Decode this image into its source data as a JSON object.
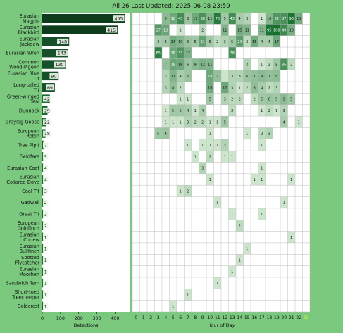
{
  "header": {
    "title": "All 26 Last Updated: 2025-06-08 23:59"
  },
  "chart_data": [
    {
      "type": "bar",
      "orientation": "horizontal",
      "categories": [
        "Eurasian Magpie",
        "Eurasian Blackbird",
        "Eurasian Jackdaw",
        "Eurasian Wren",
        "Common Wood-Pigeon",
        "Eurasian Blue Tit",
        "Long-tailed Tit",
        "Green-winged Teal",
        "Dunnock",
        "Graylag Goose",
        "European Robin",
        "Tree Pipit",
        "Fieldfare",
        "Eurasian Coot",
        "Eurasian Collared-Dove",
        "Coal Tit",
        "Gadwall",
        "Great Tit",
        "European Goldfinch",
        "Eurasian Curlew",
        "Eurasian Bullfinch",
        "Spotted Flycatcher",
        "Eurasian Moorhen",
        "Sandwich Tern",
        "Short-toed Treecreeper",
        "Goldcrest"
      ],
      "values": [
        455,
        415,
        148,
        143,
        130,
        90,
        69,
        42,
        29,
        22,
        18,
        7,
        5,
        4,
        4,
        3,
        2,
        2,
        2,
        1,
        1,
        1,
        1,
        1,
        1,
        1
      ],
      "xlabel": "Detections",
      "xlim": [
        0,
        480
      ],
      "xticks": [
        0,
        100,
        200,
        300,
        400
      ]
    },
    {
      "type": "heatmap",
      "xlabel": "Hour of Day",
      "hours": [
        0,
        1,
        2,
        3,
        4,
        5,
        6,
        7,
        8,
        9,
        10,
        11,
        12,
        13,
        14,
        15,
        16,
        17,
        18,
        19,
        20,
        21,
        22,
        23
      ],
      "current_hour": 23,
      "rows": [
        {
          "species": "Eurasian Magpie",
          "cells": [
            [
              4,
              9
            ],
            [
              5,
              18
            ],
            [
              6,
              45
            ],
            [
              7,
              6
            ],
            [
              8,
              17
            ],
            [
              9,
              38
            ],
            [
              10,
              11
            ],
            [
              11,
              78
            ],
            [
              12,
              5
            ],
            [
              13,
              43
            ],
            [
              14,
              4
            ],
            [
              15,
              3
            ],
            [
              17,
              1
            ],
            [
              18,
              10
            ],
            [
              19,
              32
            ],
            [
              20,
              37
            ],
            [
              21,
              96
            ],
            [
              22,
              15
            ]
          ]
        },
        {
          "species": "Eurasian Blackbird",
          "cells": [
            [
              3,
              27
            ],
            [
              4,
              19
            ],
            [
              6,
              1
            ],
            [
              9,
              2
            ],
            [
              12,
              11
            ],
            [
              14,
              15
            ],
            [
              15,
              11
            ],
            [
              17,
              11
            ],
            [
              18,
              95
            ],
            [
              19,
              108
            ],
            [
              20,
              49
            ],
            [
              21,
              13
            ]
          ]
        },
        {
          "species": "Eurasian Jackdaw",
          "cells": [
            [
              3,
              4
            ],
            [
              4,
              5
            ],
            [
              5,
              14
            ],
            [
              6,
              10
            ],
            [
              7,
              6
            ],
            [
              8,
              5
            ],
            [
              9,
              21
            ],
            [
              10,
              5
            ],
            [
              11,
              2
            ],
            [
              12,
              3
            ],
            [
              13,
              5
            ],
            [
              14,
              24
            ],
            [
              15,
              2
            ],
            [
              16,
              15
            ],
            [
              17,
              4
            ],
            [
              18,
              4
            ],
            [
              19,
              17
            ]
          ]
        },
        {
          "species": "Eurasian Wren",
          "cells": [
            [
              3,
              65
            ],
            [
              5,
              18
            ],
            [
              6,
              33
            ],
            [
              7,
              12
            ],
            [
              13,
              38
            ]
          ]
        },
        {
          "species": "Common Wood-Pigeon",
          "cells": [
            [
              4,
              7
            ],
            [
              5,
              19
            ],
            [
              6,
              16
            ],
            [
              7,
              6
            ],
            [
              8,
              9
            ],
            [
              9,
              12
            ],
            [
              10,
              11
            ],
            [
              15,
              3
            ],
            [
              17,
              1
            ],
            [
              18,
              2
            ],
            [
              19,
              5
            ],
            [
              20,
              36
            ],
            [
              21,
              2
            ]
          ]
        },
        {
          "species": "Eurasian Blue Tit",
          "cells": [
            [
              4,
              3
            ],
            [
              5,
              11
            ],
            [
              6,
              4
            ],
            [
              7,
              6
            ],
            [
              10,
              18
            ],
            [
              11,
              7
            ],
            [
              12,
              1
            ],
            [
              13,
              3
            ],
            [
              14,
              3
            ],
            [
              15,
              6
            ],
            [
              16,
              7
            ],
            [
              17,
              9
            ],
            [
              18,
              7
            ],
            [
              19,
              8
            ]
          ]
        },
        {
          "species": "Long-tailed Tit",
          "cells": [
            [
              4,
              3
            ],
            [
              5,
              8
            ],
            [
              6,
              2
            ],
            [
              10,
              16
            ],
            [
              12,
              17
            ],
            [
              13,
              3
            ],
            [
              14,
              1
            ],
            [
              15,
              2
            ],
            [
              16,
              8
            ],
            [
              17,
              4
            ],
            [
              18,
              2
            ],
            [
              19,
              3
            ]
          ]
        },
        {
          "species": "Green-winged Teal",
          "cells": [
            [
              6,
              1
            ],
            [
              7,
              1
            ],
            [
              10,
              5
            ],
            [
              12,
              3
            ],
            [
              13,
              2
            ],
            [
              14,
              2
            ],
            [
              16,
              2
            ],
            [
              17,
              5
            ],
            [
              18,
              6
            ],
            [
              19,
              5
            ],
            [
              20,
              9
            ],
            [
              21,
              5
            ]
          ]
        },
        {
          "species": "Dunnock",
          "cells": [
            [
              4,
              1
            ],
            [
              5,
              5
            ],
            [
              6,
              5
            ],
            [
              7,
              4
            ],
            [
              8,
              1
            ],
            [
              9,
              4
            ],
            [
              13,
              2
            ],
            [
              17,
              1
            ],
            [
              18,
              2
            ],
            [
              19,
              1
            ],
            [
              20,
              3
            ]
          ]
        },
        {
          "species": "Graylag Goose",
          "cells": [
            [
              4,
              1
            ],
            [
              5,
              1
            ],
            [
              6,
              1
            ],
            [
              7,
              3
            ],
            [
              8,
              2
            ],
            [
              9,
              2
            ],
            [
              10,
              1
            ],
            [
              11,
              1
            ],
            [
              12,
              5
            ],
            [
              20,
              4
            ],
            [
              22,
              1
            ]
          ]
        },
        {
          "species": "European Robin",
          "cells": [
            [
              3,
              5
            ],
            [
              4,
              6
            ],
            [
              10,
              1
            ],
            [
              15,
              1
            ],
            [
              17,
              2
            ],
            [
              18,
              3
            ]
          ]
        },
        {
          "species": "Tree Pipit",
          "cells": [
            [
              7,
              1
            ],
            [
              9,
              1
            ],
            [
              10,
              1
            ],
            [
              11,
              1
            ],
            [
              12,
              3
            ],
            [
              17,
              1
            ]
          ]
        },
        {
          "species": "Fieldfare",
          "cells": [
            [
              8,
              1
            ],
            [
              10,
              2
            ],
            [
              12,
              1
            ],
            [
              13,
              1
            ]
          ]
        },
        {
          "species": "Eurasian Coot",
          "cells": [
            [
              9,
              3
            ],
            [
              17,
              1
            ]
          ]
        },
        {
          "species": "Eurasian Collared-Dove",
          "cells": [
            [
              10,
              1
            ],
            [
              16,
              1
            ],
            [
              17,
              1
            ],
            [
              21,
              1
            ]
          ]
        },
        {
          "species": "Coal Tit",
          "cells": [
            [
              6,
              1
            ],
            [
              7,
              2
            ]
          ]
        },
        {
          "species": "Gadwall",
          "cells": [
            [
              11,
              1
            ],
            [
              20,
              1
            ]
          ]
        },
        {
          "species": "Great Tit",
          "cells": [
            [
              13,
              1
            ],
            [
              17,
              1
            ]
          ]
        },
        {
          "species": "European Goldfinch",
          "cells": [
            [
              14,
              2
            ]
          ]
        },
        {
          "species": "Eurasian Curlew",
          "cells": [
            [
              21,
              1
            ]
          ]
        },
        {
          "species": "Eurasian Bullfinch",
          "cells": [
            [
              15,
              1
            ]
          ]
        },
        {
          "species": "Spotted Flycatcher",
          "cells": [
            [
              14,
              1
            ]
          ]
        },
        {
          "species": "Eurasian Moorhen",
          "cells": [
            [
              13,
              1
            ]
          ]
        },
        {
          "species": "Sandwich Tern",
          "cells": [
            [
              11,
              1
            ]
          ]
        },
        {
          "species": "Short-toed Treecreeper",
          "cells": [
            [
              7,
              1
            ]
          ]
        },
        {
          "species": "Goldcrest",
          "cells": [
            [
              5,
              1
            ]
          ]
        }
      ]
    }
  ],
  "colors": {
    "background": "#7ac97e",
    "bar_dark": "#0d3d1c",
    "bar_mid": "#1b6b30",
    "hour_highlight": "#d7ff3a"
  }
}
